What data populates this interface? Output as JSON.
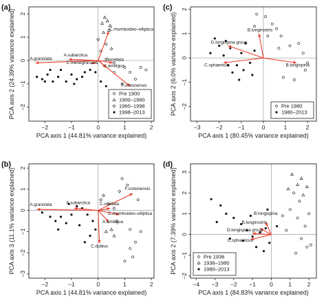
{
  "chart_data": [
    {
      "type": "scatter",
      "panel": "(a)",
      "xlabel": "PCA axis 1 (44.81% variance explained)",
      "ylabel": "PCA axis 2 (24.39% variance explained)",
      "xlim": [
        -2.6,
        2.1
      ],
      "ylim": [
        -2.6,
        2.3
      ],
      "xticks": [
        -2,
        -1,
        0,
        1,
        2
      ],
      "yticks": [
        -2,
        -1,
        0,
        1,
        2
      ],
      "xtick_labels": [
        "−2",
        "−1",
        "0",
        "1",
        "2"
      ],
      "ytick_labels": [
        "−2",
        "−1",
        "0",
        "1",
        "2"
      ],
      "legend_position": "bottom-right",
      "legend": [
        {
          "label": "Pre 1900",
          "marker": "open-circle"
        },
        {
          "label": "1900–1960",
          "marker": "open-triangle"
        },
        {
          "label": "1960–1998",
          "marker": "open-diamond"
        },
        {
          "label": "1998–2013",
          "marker": "filled-circle"
        }
      ],
      "vectors": [
        {
          "label": "C.rhomboideo–elliptica",
          "x": 0.4,
          "y": 1.25,
          "lx": 0.42,
          "ly": 1.28,
          "anchor": "start"
        },
        {
          "label": "A.subarctica",
          "x": -1.1,
          "y": 0.05,
          "lx": -0.85,
          "ly": 0.17,
          "anchor": "middle"
        },
        {
          "label": "A.granulata",
          "x": -2.35,
          "y": -0.1,
          "lx": -2.15,
          "ly": 0.02,
          "anchor": "middle"
        },
        {
          "label": "C.ocellata",
          "x": 0.55,
          "y": -0.1,
          "lx": 0.6,
          "ly": -0.02,
          "anchor": "middle"
        },
        {
          "label": "A.ambigua",
          "x": 0.3,
          "y": -0.3,
          "lx": 0.6,
          "ly": -0.28,
          "anchor": "middle"
        },
        {
          "label": "C.meneghiniana",
          "x": -0.25,
          "y": -0.15,
          "lx": -0.6,
          "ly": -0.15,
          "anchor": "middle"
        },
        {
          "label": "F.crotonensis",
          "x": 1.2,
          "y": -1.1,
          "lx": 1.35,
          "ly": -1.12,
          "anchor": "middle"
        }
      ],
      "series": [
        {
          "name": "Pre 1900",
          "marker": "open-circle",
          "points": [
            [
              1.0,
              -0.3
            ],
            [
              1.6,
              -0.3
            ],
            [
              1.2,
              -0.5
            ],
            [
              0.9,
              -1.0
            ],
            [
              1.4,
              -0.8
            ],
            [
              0.6,
              -0.5
            ],
            [
              1.8,
              -0.4
            ]
          ]
        },
        {
          "name": "1900–1960",
          "marker": "open-triangle",
          "points": [
            [
              0.15,
              1.6
            ],
            [
              0.35,
              1.7
            ],
            [
              0.25,
              1.85
            ],
            [
              0.45,
              1.5
            ],
            [
              0.4,
              1.3
            ],
            [
              0.2,
              1.2
            ]
          ]
        },
        {
          "name": "1960–1998",
          "marker": "open-diamond",
          "points": [
            [
              0.3,
              0.7
            ],
            [
              0.5,
              0.5
            ],
            [
              0.1,
              0.4
            ],
            [
              0.35,
              0.05
            ],
            [
              0.6,
              -0.1
            ],
            [
              0.0,
              0.9
            ]
          ]
        },
        {
          "name": "1998–2013",
          "marker": "filled-circle",
          "points": [
            [
              -2.3,
              -0.7
            ],
            [
              -2.1,
              -0.8
            ],
            [
              -1.9,
              -0.6
            ],
            [
              -1.7,
              -0.9
            ],
            [
              -1.5,
              -0.7
            ],
            [
              -1.2,
              -0.9
            ],
            [
              -1.0,
              -0.6
            ],
            [
              -0.8,
              -0.8
            ],
            [
              -0.6,
              -0.7
            ],
            [
              -0.5,
              -0.5
            ],
            [
              -0.3,
              -0.4
            ],
            [
              -0.1,
              -0.5
            ],
            [
              -1.4,
              -0.4
            ],
            [
              -1.8,
              -0.4
            ],
            [
              -2.0,
              -0.9
            ],
            [
              0.1,
              -0.9
            ],
            [
              0.3,
              -1.1
            ],
            [
              -0.9,
              -1.0
            ]
          ]
        }
      ]
    },
    {
      "type": "scatter",
      "panel": "(b)",
      "xlabel": "PCA axis 1 (44.81% variance explained)",
      "ylabel": "PCA axis 3 (11.1% variance explained)",
      "xlim": [
        -2.6,
        2.1
      ],
      "ylim": [
        -3.2,
        2.2
      ],
      "xticks": [
        -2,
        -1,
        0,
        1,
        2
      ],
      "yticks": [
        -3,
        -2,
        -1,
        0,
        1,
        2
      ],
      "xtick_labels": [
        "−2",
        "−1",
        "0",
        "1",
        "2"
      ],
      "ytick_labels": [
        "−3",
        "−2",
        "−1",
        "0",
        "1",
        "2"
      ],
      "vectors": [
        {
          "label": "F.crotonensis",
          "x": 1.3,
          "y": 0.8,
          "lx": 1.48,
          "ly": 0.97,
          "anchor": "middle"
        },
        {
          "label": "A.subarctica",
          "x": -0.9,
          "y": 0.1,
          "lx": -0.75,
          "ly": 0.3,
          "anchor": "middle"
        },
        {
          "label": "A.granulata",
          "x": -2.3,
          "y": 0.05,
          "lx": -2.15,
          "ly": 0.22,
          "anchor": "middle"
        },
        {
          "label": "C.ocellata",
          "x": 0.45,
          "y": 0.1,
          "lx": 0.42,
          "ly": 0.25,
          "anchor": "middle"
        },
        {
          "label": "C.rhomboideo–elliptica",
          "x": 0.8,
          "y": -0.2,
          "lx": 1.2,
          "ly": -0.2,
          "anchor": "middle"
        },
        {
          "label": "A.ambigua",
          "x": 0.4,
          "y": -0.55,
          "lx": 0.55,
          "ly": -0.6,
          "anchor": "middle"
        },
        {
          "label": "C.dubius",
          "x": 0.05,
          "y": -1.55,
          "lx": 0.05,
          "ly": -1.75,
          "anchor": "middle"
        }
      ],
      "series": [
        {
          "name": "Pre 1900",
          "marker": "open-circle",
          "points": [
            [
              0.9,
              1.5
            ],
            [
              1.1,
              1.2
            ],
            [
              1.5,
              0.5
            ],
            [
              1.2,
              -0.9
            ],
            [
              1.4,
              -1.5
            ],
            [
              1.2,
              -1.8
            ],
            [
              1.3,
              -2.2
            ],
            [
              1.0,
              -2.4
            ],
            [
              1.6,
              -1.0
            ]
          ]
        },
        {
          "name": "1900–1960",
          "marker": "open-triangle",
          "points": [
            [
              0.5,
              -0.9
            ],
            [
              0.7,
              -0.5
            ],
            [
              0.6,
              -1.2
            ],
            [
              0.3,
              -1.0
            ]
          ]
        },
        {
          "name": "1960–1998",
          "marker": "open-diamond",
          "points": [
            [
              0.1,
              0.5
            ],
            [
              0.4,
              0.3
            ],
            [
              0.6,
              0.1
            ],
            [
              0.2,
              0.7
            ],
            [
              0.8,
              0.9
            ]
          ]
        },
        {
          "name": "1998–2013",
          "marker": "filled-circle",
          "points": [
            [
              -2.1,
              -0.1
            ],
            [
              -1.8,
              -0.3
            ],
            [
              -1.6,
              -0.5
            ],
            [
              -1.4,
              -0.3
            ],
            [
              -1.2,
              -0.6
            ],
            [
              -1.0,
              -0.2
            ],
            [
              -0.8,
              0.2
            ],
            [
              -0.6,
              0.1
            ],
            [
              -0.4,
              -0.2
            ],
            [
              -0.2,
              -0.5
            ],
            [
              -0.5,
              -1.5
            ],
            [
              -0.3,
              -1.2
            ],
            [
              -0.1,
              -0.9
            ],
            [
              -1.1,
              0.3
            ],
            [
              -1.5,
              -0.9
            ],
            [
              -0.7,
              -0.7
            ]
          ]
        }
      ]
    },
    {
      "type": "scatter",
      "panel": "(c)",
      "xlabel": "PCA axis 1 (80.45% variance explained)",
      "ylabel": "PCA axis 2 (6.0% variance explained)",
      "xlim": [
        -3.3,
        2.4
      ],
      "ylim": [
        -2.6,
        2.1
      ],
      "xticks": [
        -3,
        -2,
        -1,
        0,
        1,
        2
      ],
      "yticks": [
        -2,
        -1,
        0,
        1,
        2
      ],
      "xtick_labels": [
        "−3",
        "−2",
        "−1",
        "0",
        "1",
        "2"
      ],
      "ytick_labels": [
        "−2",
        "−1",
        "0",
        "1",
        "2"
      ],
      "legend_position": "bottom-right",
      "legend": [
        {
          "label": "Pre 1980",
          "marker": "open-circle"
        },
        {
          "label": "1980–2013",
          "marker": "filled-circle"
        }
      ],
      "vectors": [
        {
          "label": "B.longirostris",
          "x": -0.2,
          "y": 1.0,
          "lx": -0.15,
          "ly": 1.1,
          "anchor": "middle"
        },
        {
          "label": "D.longispina group",
          "x": -1.6,
          "y": 0.5,
          "lx": -1.55,
          "ly": 0.58,
          "anchor": "middle"
        },
        {
          "label": "C.sphaericus",
          "x": -1.8,
          "y": -0.2,
          "lx": -2.1,
          "ly": -0.35,
          "anchor": "middle"
        },
        {
          "label": "B.longispina",
          "x": 1.5,
          "y": -0.2,
          "lx": 1.55,
          "ly": -0.35,
          "anchor": "middle"
        }
      ],
      "series": [
        {
          "name": "Pre 1980",
          "marker": "open-circle",
          "points": [
            [
              -0.3,
              1.8
            ],
            [
              0.1,
              1.7
            ],
            [
              0.4,
              1.4
            ],
            [
              0.6,
              1.2
            ],
            [
              0.8,
              0.9
            ],
            [
              1.2,
              0.5
            ],
            [
              1.6,
              0.6
            ],
            [
              1.8,
              0.2
            ],
            [
              2.0,
              -0.2
            ],
            [
              1.9,
              -0.5
            ],
            [
              0.9,
              -0.8
            ],
            [
              1.4,
              -0.9
            ],
            [
              0.2,
              0.9
            ],
            [
              -0.4,
              1.3
            ],
            [
              0.7,
              0.4
            ]
          ]
        },
        {
          "name": "1980–2013",
          "marker": "filled-circle",
          "points": [
            [
              -2.2,
              0.8
            ],
            [
              -2.0,
              0.5
            ],
            [
              -1.8,
              0.1
            ],
            [
              -1.6,
              -0.3
            ],
            [
              -1.4,
              -0.6
            ],
            [
              -1.2,
              -0.3
            ],
            [
              -1.0,
              0.2
            ],
            [
              -0.8,
              0.6
            ],
            [
              -0.6,
              -0.2
            ],
            [
              -0.5,
              -0.7
            ],
            [
              -1.5,
              0.4
            ],
            [
              -1.1,
              -0.9
            ],
            [
              -0.4,
              0.3
            ],
            [
              -2.4,
              0.2
            ],
            [
              -1.7,
              0.7
            ],
            [
              -0.9,
              -0.5
            ]
          ]
        }
      ]
    },
    {
      "type": "scatter",
      "panel": "(d)",
      "xlabel": "PCA axis 1 (84.83% variance explained)",
      "ylabel": "PCA axis 2 (7.39% variance explained)",
      "xlim": [
        -4.3,
        2.4
      ],
      "ylim": [
        -2.1,
        3.4
      ],
      "xticks": [
        -4,
        -3,
        -2,
        -1,
        0,
        1,
        2
      ],
      "yticks": [
        -2,
        -1,
        0,
        1,
        2,
        3
      ],
      "xtick_labels": [
        "−4",
        "−3",
        "−2",
        "−1",
        "0",
        "1",
        "2"
      ],
      "ytick_labels": [
        "−2",
        "−1",
        "0",
        "1",
        "2",
        "3"
      ],
      "legend_position": "bottom-left",
      "legend": [
        {
          "label": "Pre 1936",
          "marker": "open-circle"
        },
        {
          "label": "1936–1980",
          "marker": "open-triangle"
        },
        {
          "label": "1980–2013",
          "marker": "filled-circle"
        }
      ],
      "vectors": [
        {
          "label": "B.longispina",
          "x": -0.3,
          "y": 0.6,
          "lx": -0.3,
          "ly": 0.95,
          "anchor": "middle"
        },
        {
          "label": "B.longirostris",
          "x": -0.6,
          "y": 0.3,
          "lx": -0.9,
          "ly": 0.52,
          "anchor": "middle"
        },
        {
          "label": "D.longispina group",
          "x": -1.0,
          "y": 0.05,
          "lx": -1.4,
          "ly": 0.16,
          "anchor": "middle"
        },
        {
          "label": "C.sphaericus",
          "x": -1.1,
          "y": -0.25,
          "lx": -1.65,
          "ly": -0.35,
          "anchor": "middle"
        }
      ],
      "series": [
        {
          "name": "Pre 1936",
          "marker": "open-circle",
          "points": [
            [
              1.2,
              2.0
            ],
            [
              1.5,
              1.6
            ],
            [
              1.0,
              1.2
            ],
            [
              0.6,
              0.9
            ],
            [
              1.8,
              0.4
            ],
            [
              1.6,
              -0.2
            ],
            [
              1.9,
              -0.6
            ],
            [
              1.3,
              -0.9
            ],
            [
              2.1,
              -0.5
            ],
            [
              0.8,
              0.2
            ],
            [
              1.4,
              0.8
            ],
            [
              2.0,
              1.0
            ]
          ]
        },
        {
          "name": "1936–1980",
          "marker": "open-triangle",
          "points": [
            [
              1.1,
              2.9
            ],
            [
              1.6,
              2.7
            ],
            [
              1.9,
              2.3
            ],
            [
              1.4,
              2.4
            ],
            [
              0.9,
              2.2
            ],
            [
              1.7,
              1.9
            ]
          ]
        },
        {
          "name": "1980–2013",
          "marker": "filled-circle",
          "points": [
            [
              -3.2,
              1.7
            ],
            [
              -2.7,
              1.4
            ],
            [
              -2.4,
              1.0
            ],
            [
              -2.0,
              0.8
            ],
            [
              -1.6,
              0.5
            ],
            [
              -1.3,
              0.2
            ],
            [
              -1.0,
              -0.1
            ],
            [
              -0.6,
              0.1
            ],
            [
              -0.3,
              0.3
            ],
            [
              -0.1,
              -0.4
            ],
            [
              -0.4,
              -0.8
            ],
            [
              -0.8,
              -0.6
            ],
            [
              -1.5,
              -0.3
            ],
            [
              -2.2,
              -0.2
            ],
            [
              -2.9,
              0.6
            ],
            [
              0.3,
              0.4
            ],
            [
              -0.2,
              1.2
            ],
            [
              -1.1,
              0.9
            ]
          ]
        }
      ]
    }
  ]
}
